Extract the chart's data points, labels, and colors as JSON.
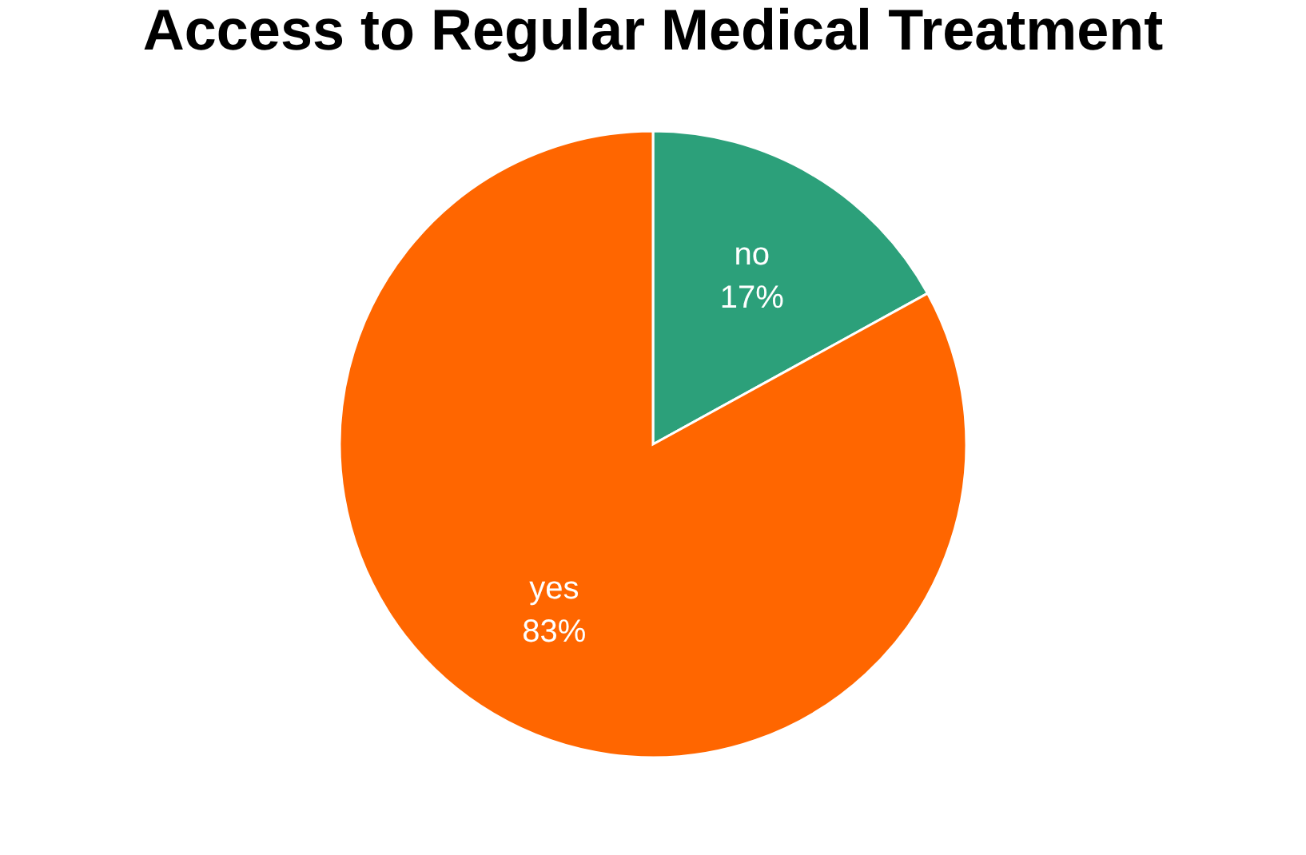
{
  "chart_data": {
    "type": "pie",
    "title": "Access to Regular Medical Treatment",
    "categories": [
      "no",
      "yes"
    ],
    "values": [
      17,
      83
    ],
    "colors": [
      "#2ca07a",
      "#ff6600"
    ],
    "value_labels": [
      "17%",
      "83%"
    ],
    "legend": false
  }
}
